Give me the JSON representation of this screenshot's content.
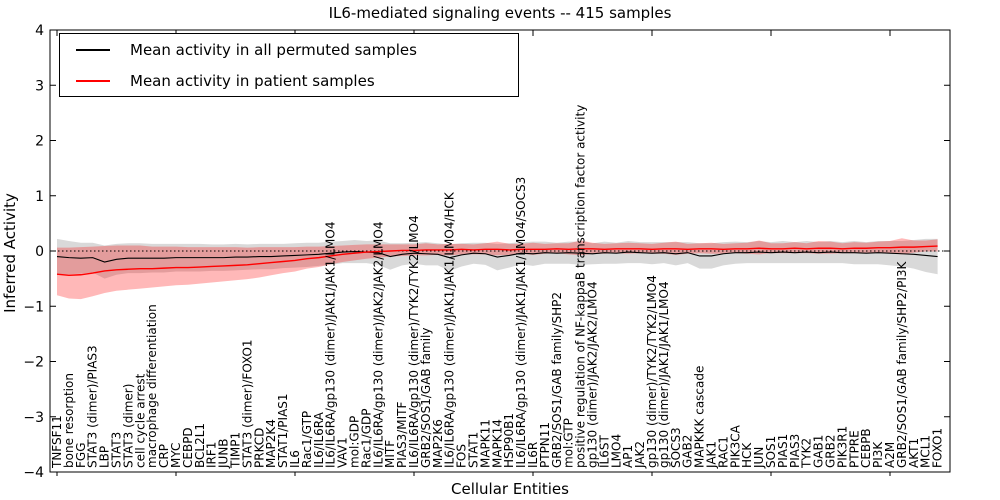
{
  "chart_data": {
    "type": "line",
    "title": "IL6-mediated signaling events -- 415 samples",
    "xlabel": "Cellular Entities",
    "ylabel": "Inferred Activity",
    "ylim": [
      -4,
      4
    ],
    "yticks": [
      "4",
      "3",
      "2",
      "1",
      "0",
      "−1",
      "−2",
      "−3",
      "−4"
    ],
    "grid": false,
    "zero_line_style": "dotted",
    "legend_position": "upper left",
    "categories": [
      "TNFSF11",
      "bone resorption",
      "FGG",
      "STAT3 (dimer)/PIAS3",
      "LBP",
      "STAT3",
      "STAT3 (dimer)",
      "cell cycle arrest",
      "macrophage differentiation",
      "CRP",
      "MYC",
      "CEBPD",
      "BCL2L1",
      "IRF1",
      "JUNB",
      "TIMP1",
      "STAT3 (dimer)/FOXO1",
      "PRKCD",
      "MAP2K4",
      "STAT1/PIAS1",
      "IL6",
      "Rac1/GTP",
      "IL6/IL6RA",
      "IL6/IL6RA/gp130 (dimer)/JAK1/JAK1/LMO4",
      "VAV1",
      "mol:GDP",
      "Rac1/GDP",
      "IL6/IL6RA/gp130 (dimer)/JAK2/JAK2/LMO4",
      "MITF",
      "PIAS3/MITF",
      "IL6/IL6RA/gp130 (dimer)/TYK2/TYK2/LMO4",
      "GRB2/SOS1/GAB family",
      "MAP2K6",
      "IL6/IL6RA/gp130 (dimer)/JAK1/JAK1/LMO4/HCK",
      "FOS",
      "STAT1",
      "MAPK11",
      "MAPK14",
      "HSP90B1",
      "IL6/IL6RA/gp130 (dimer)/JAK1/JAK1/LMO4/SOCS3",
      "IL6R",
      "PTPN11",
      "GRB2/SOS1/GAB family/SHP2",
      "mol:GTP",
      "positive regulation of NF-kappaB transcription factor activity",
      "gp130 (dimer)/JAK2/JAK2/LMO4",
      "IL6ST",
      "LMO4",
      "AP1",
      "JAK2",
      "gp130 (dimer)/TYK2/TYK2/LMO4",
      "gp130 (dimer)/JAK1/JAK1/LMO4",
      "SOCS3",
      "GAB2",
      "MAPKKK cascade",
      "JAK1",
      "RAC1",
      "PIK3CA",
      "HCK",
      "JUN",
      "SOS1",
      "PIAS1",
      "PIAS3",
      "TYK2",
      "GAB1",
      "GRB2",
      "PIK3R1",
      "PTPRE",
      "CEBPB",
      "PI3K",
      "A2M",
      "GRB2/SOS1/GAB family/SHP2/PI3K",
      "AKT1",
      "MCL1",
      "FOXO1"
    ],
    "series": [
      {
        "name": "Mean activity in all permuted samples",
        "color": "#000000",
        "values": [
          -0.1,
          -0.12,
          -0.13,
          -0.12,
          -0.2,
          -0.15,
          -0.13,
          -0.13,
          -0.13,
          -0.13,
          -0.12,
          -0.12,
          -0.12,
          -0.12,
          -0.12,
          -0.11,
          -0.11,
          -0.1,
          -0.1,
          -0.09,
          -0.08,
          -0.07,
          -0.06,
          -0.04,
          -0.02,
          -0.01,
          -0.02,
          -0.03,
          -0.1,
          -0.06,
          -0.04,
          -0.05,
          -0.06,
          -0.12,
          -0.07,
          -0.04,
          -0.05,
          -0.11,
          -0.08,
          -0.04,
          -0.05,
          -0.03,
          -0.04,
          -0.03,
          -0.04,
          -0.05,
          -0.03,
          -0.04,
          -0.02,
          -0.03,
          -0.04,
          -0.03,
          -0.05,
          -0.03,
          -0.09,
          -0.09,
          -0.05,
          -0.03,
          -0.03,
          -0.02,
          -0.03,
          -0.02,
          -0.03,
          -0.02,
          -0.03,
          -0.02,
          -0.03,
          -0.03,
          -0.04,
          -0.03,
          -0.04,
          -0.05,
          -0.06,
          -0.08,
          -0.1
        ]
      },
      {
        "name": "Mean activity in patient samples",
        "color": "#ff0000",
        "values": [
          -0.42,
          -0.44,
          -0.43,
          -0.4,
          -0.36,
          -0.34,
          -0.33,
          -0.32,
          -0.32,
          -0.31,
          -0.3,
          -0.3,
          -0.29,
          -0.28,
          -0.27,
          -0.26,
          -0.25,
          -0.23,
          -0.21,
          -0.19,
          -0.17,
          -0.14,
          -0.12,
          -0.09,
          -0.06,
          -0.04,
          -0.02,
          -0.01,
          0.0,
          0.01,
          0.01,
          0.02,
          0.02,
          0.02,
          0.03,
          0.02,
          0.03,
          0.03,
          0.02,
          0.03,
          0.03,
          0.03,
          0.04,
          0.03,
          0.04,
          0.04,
          0.03,
          0.04,
          0.04,
          0.04,
          0.03,
          0.04,
          0.04,
          0.03,
          0.04,
          0.04,
          0.03,
          0.04,
          0.04,
          0.05,
          0.04,
          0.04,
          0.05,
          0.04,
          0.05,
          0.05,
          0.04,
          0.05,
          0.05,
          0.06,
          0.06,
          0.07,
          0.07,
          0.08,
          0.09
        ]
      }
    ],
    "bands": [
      {
        "name": "permuted-samples-band",
        "fill": "rgba(0,0,0,0.15)",
        "upper": [
          0.22,
          0.18,
          0.15,
          0.15,
          0.1,
          0.13,
          0.14,
          0.14,
          0.13,
          0.13,
          0.13,
          0.13,
          0.13,
          0.12,
          0.12,
          0.13,
          0.12,
          0.13,
          0.13,
          0.13,
          0.14,
          0.15,
          0.15,
          0.17,
          0.18,
          0.2,
          0.18,
          0.19,
          0.14,
          0.14,
          0.15,
          0.16,
          0.14,
          0.12,
          0.14,
          0.15,
          0.15,
          0.13,
          0.14,
          0.16,
          0.17,
          0.17,
          0.15,
          0.17,
          0.17,
          0.14,
          0.17,
          0.15,
          0.18,
          0.16,
          0.16,
          0.16,
          0.16,
          0.16,
          0.14,
          0.14,
          0.16,
          0.17,
          0.16,
          0.18,
          0.16,
          0.18,
          0.16,
          0.18,
          0.16,
          0.18,
          0.16,
          0.18,
          0.16,
          0.18,
          0.18,
          0.18,
          0.2,
          0.22,
          0.22
        ],
        "lower": [
          -0.42,
          -0.42,
          -0.41,
          -0.39,
          -0.5,
          -0.43,
          -0.4,
          -0.4,
          -0.39,
          -0.39,
          -0.37,
          -0.37,
          -0.37,
          -0.36,
          -0.36,
          -0.35,
          -0.34,
          -0.33,
          -0.33,
          -0.31,
          -0.3,
          -0.29,
          -0.27,
          -0.25,
          -0.22,
          -0.22,
          -0.22,
          -0.25,
          -0.34,
          -0.26,
          -0.23,
          -0.26,
          -0.26,
          -0.36,
          -0.28,
          -0.23,
          -0.25,
          -0.35,
          -0.3,
          -0.24,
          -0.27,
          -0.23,
          -0.23,
          -0.23,
          -0.25,
          -0.24,
          -0.23,
          -0.23,
          -0.22,
          -0.22,
          -0.24,
          -0.22,
          -0.26,
          -0.22,
          -0.32,
          -0.32,
          -0.26,
          -0.23,
          -0.22,
          -0.22,
          -0.22,
          -0.22,
          -0.22,
          -0.22,
          -0.22,
          -0.22,
          -0.22,
          -0.24,
          -0.24,
          -0.24,
          -0.26,
          -0.28,
          -0.32,
          -0.38,
          -0.42
        ]
      },
      {
        "name": "patient-samples-band",
        "fill": "rgba(255,0,0,0.28)",
        "upper": [
          0.06,
          0.06,
          0.07,
          0.08,
          0.09,
          0.1,
          0.1,
          0.1,
          0.08,
          0.08,
          0.08,
          0.07,
          0.07,
          0.07,
          0.07,
          0.07,
          0.06,
          0.07,
          0.07,
          0.07,
          0.07,
          0.08,
          0.08,
          0.09,
          0.1,
          0.11,
          0.12,
          0.12,
          0.12,
          0.12,
          0.12,
          0.14,
          0.12,
          0.13,
          0.13,
          0.12,
          0.14,
          0.17,
          0.13,
          0.13,
          0.15,
          0.13,
          0.14,
          0.14,
          0.19,
          0.15,
          0.13,
          0.14,
          0.15,
          0.14,
          0.13,
          0.15,
          0.17,
          0.13,
          0.14,
          0.15,
          0.13,
          0.14,
          0.15,
          0.19,
          0.14,
          0.14,
          0.16,
          0.14,
          0.18,
          0.17,
          0.14,
          0.16,
          0.15,
          0.17,
          0.18,
          0.23,
          0.19,
          0.19,
          0.21
        ],
        "lower": [
          -0.8,
          -0.86,
          -0.87,
          -0.82,
          -0.76,
          -0.72,
          -0.7,
          -0.68,
          -0.66,
          -0.64,
          -0.62,
          -0.61,
          -0.59,
          -0.57,
          -0.55,
          -0.53,
          -0.51,
          -0.48,
          -0.44,
          -0.4,
          -0.37,
          -0.32,
          -0.29,
          -0.24,
          -0.2,
          -0.17,
          -0.14,
          -0.12,
          -0.1,
          -0.09,
          -0.08,
          -0.08,
          -0.07,
          -0.08,
          -0.06,
          -0.06,
          -0.06,
          -0.08,
          -0.07,
          -0.05,
          -0.07,
          -0.05,
          -0.04,
          -0.06,
          -0.08,
          -0.05,
          -0.05,
          -0.04,
          -0.05,
          -0.04,
          -0.05,
          -0.05,
          -0.07,
          -0.05,
          -0.04,
          -0.05,
          -0.05,
          -0.04,
          -0.05,
          -0.06,
          -0.04,
          -0.04,
          -0.04,
          -0.04,
          -0.05,
          -0.05,
          -0.04,
          -0.04,
          -0.03,
          -0.03,
          -0.04,
          -0.06,
          -0.03,
          -0.01,
          -0.01
        ]
      }
    ]
  }
}
